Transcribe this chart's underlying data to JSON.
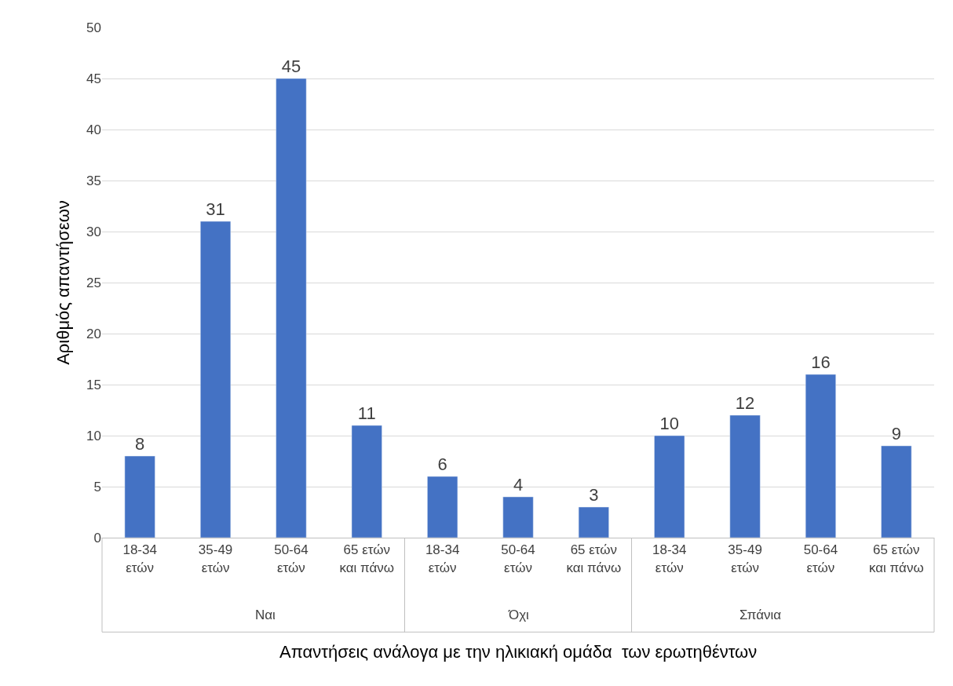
{
  "chart_data": {
    "type": "bar",
    "xlabel": "Απαντήσεις ανάλογα με την ηλικιακή ομάδα  των ερωτηθέντων",
    "ylabel": "Αριθμός απαντήσεων",
    "categories": [
      "18-34\nετών",
      "35-49\nετών",
      "50-64\nετών",
      "65 ετών\nκαι πάνω",
      "18-34\nετών",
      "50-64\nετών",
      "65 ετών\nκαι πάνω",
      "18-34\nετών",
      "35-49\nετών",
      "50-64\nετών",
      "65 ετών\nκαι πάνω"
    ],
    "series": [
      {
        "color": "#4472c4",
        "values": [
          8,
          31,
          45,
          11,
          null,
          null,
          null,
          null,
          null,
          null,
          null
        ]
      },
      {
        "color": "#4472c4",
        "values": [
          null,
          null,
          null,
          null,
          6,
          4,
          3,
          null,
          null,
          null,
          null
        ]
      },
      {
        "color": "#4472c4",
        "values": [
          null,
          null,
          null,
          null,
          null,
          null,
          null,
          10,
          12,
          16,
          9
        ]
      }
    ],
    "ylim": [
      0,
      50
    ],
    "yticks": [
      0,
      5,
      10,
      15,
      20,
      25,
      30,
      35,
      40,
      45,
      50
    ],
    "grid": "y",
    "legend": false,
    "data_labels": true,
    "annotations": [
      "Ναι",
      "Όχι",
      "Σπάνια"
    ]
  }
}
